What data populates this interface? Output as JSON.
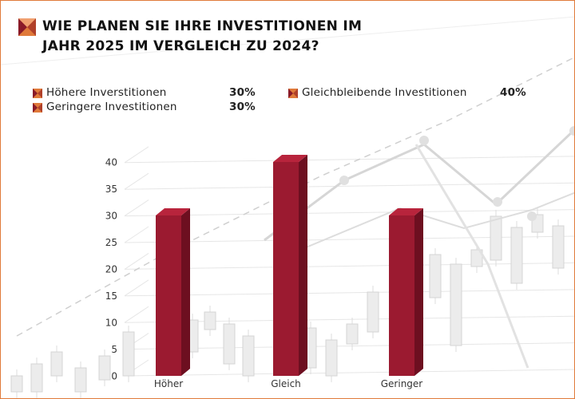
{
  "title": "WIE PLANEN SIE IHRE INVESTITIONEN IM JAHR 2025 IM VERGLEICH ZU 2024?",
  "icons": {
    "title": "envelope-x-icon",
    "legend": "envelope-x-icon"
  },
  "colors": {
    "accent": "#e07a3a",
    "bar_front": "#9b1a30",
    "bar_side": "#6d0f20",
    "bar_top": "#b8243c",
    "frame": "#e07a3a"
  },
  "legend": [
    {
      "label": "Höhere Inverstitionen",
      "value": "30%"
    },
    {
      "label": "Gleichbleibende Investitionen",
      "value": "40%"
    },
    {
      "label": "Geringere Investitionen",
      "value": "30%"
    }
  ],
  "chart_data": {
    "type": "bar",
    "categories": [
      "Höher",
      "Gleich",
      "Geringer"
    ],
    "values": [
      30,
      40,
      30
    ],
    "ylim": [
      0,
      40
    ],
    "yticks": [
      "0",
      "5",
      "10",
      "15",
      "20",
      "25",
      "30",
      "35",
      "40"
    ],
    "grid": true,
    "legend_position": "top"
  }
}
